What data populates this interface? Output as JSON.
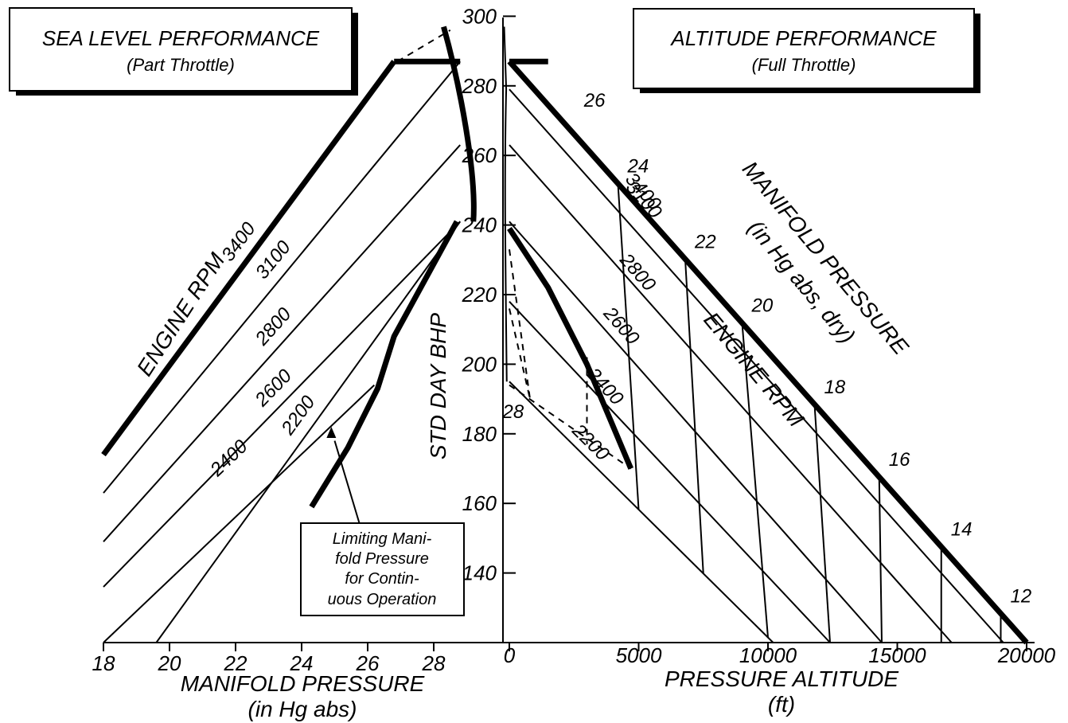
{
  "chart_data": [
    {
      "type": "line",
      "title": "SEA LEVEL PERFORMANCE",
      "subtitle": "(Part Throttle)",
      "xlabel": "MANIFOLD PRESSURE",
      "xlabel_unit": "(in Hg abs)",
      "ylabel": "STD DAY BHP",
      "xlim": [
        18,
        29
      ],
      "ylim": [
        120,
        300
      ],
      "x_ticks": [
        "18",
        "20",
        "22",
        "24",
        "26",
        "28"
      ],
      "y_ticks": [
        "140",
        "160",
        "180",
        "200",
        "220",
        "240",
        "260",
        "280",
        "300"
      ],
      "family_label": "ENGINE RPM",
      "series": [
        {
          "name": "3400",
          "x": [
            18,
            26.8
          ],
          "y": [
            174,
            287
          ]
        },
        {
          "name": "3100",
          "x": [
            18,
            28.8
          ],
          "y": [
            163,
            287
          ]
        },
        {
          "name": "2800",
          "x": [
            18,
            28.8
          ],
          "y": [
            149,
            263
          ]
        },
        {
          "name": "2600",
          "x": [
            18,
            28.8
          ],
          "y": [
            136,
            241
          ]
        },
        {
          "name": "2400",
          "x": [
            18,
            26.2
          ],
          "y": [
            120,
            194
          ]
        },
        {
          "name": "2200",
          "x": [
            19.6,
            28.8
          ],
          "y": [
            120,
            241
          ]
        }
      ],
      "limit_curve": {
        "x": [
          24.3,
          25.4,
          26.3,
          26.8,
          28.7
        ],
        "y": [
          159,
          176,
          193,
          208,
          241
        ]
      },
      "annotation": [
        "Limiting Mani-",
        "fold Pressure",
        "for Contin-",
        "uous Operation"
      ]
    },
    {
      "type": "line",
      "title": "ALTITUDE PERFORMANCE",
      "subtitle": "(Full Throttle)",
      "xlabel": "PRESSURE ALTITUDE",
      "xlabel_unit": "(ft)",
      "xlim": [
        0,
        20000
      ],
      "x_ticks": [
        "0",
        "5000",
        "10000",
        "15000",
        "20000"
      ],
      "rpm_label": "ENGINE RPM",
      "mp_label": [
        "MANIFOLD PRESSURE",
        "(in Hg abs, dry)"
      ],
      "rpm_series": [
        {
          "name": "3400",
          "x": [
            0,
            20000
          ],
          "y": [
            287,
            120
          ]
        },
        {
          "name": "3100",
          "x": [
            0,
            19100
          ],
          "y": [
            279,
            120
          ]
        },
        {
          "name": "2800",
          "x": [
            0,
            17100
          ],
          "y": [
            263,
            120
          ]
        },
        {
          "name": "2600",
          "x": [
            0,
            14400
          ],
          "y": [
            241,
            120
          ]
        },
        {
          "name": "2400",
          "x": [
            0,
            12400
          ],
          "y": [
            218,
            120
          ]
        },
        {
          "name": "2200",
          "x": [
            0,
            10200
          ],
          "y": [
            195,
            120
          ]
        }
      ],
      "manifold_pressure_labels": [
        "26",
        "24",
        "22",
        "20",
        "18",
        "16",
        "14",
        "12"
      ],
      "mp_label_extra": "28",
      "limit_curve": {
        "x": [
          0,
          1500,
          3000,
          4700
        ],
        "y": [
          239,
          222,
          200,
          170
        ]
      }
    }
  ]
}
